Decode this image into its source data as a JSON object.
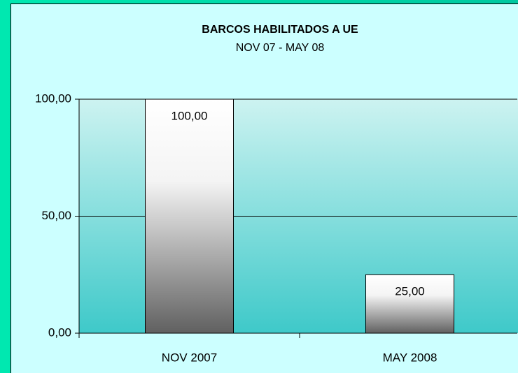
{
  "chart_data": {
    "type": "bar",
    "title": "BARCOS HABILITADOS A UE",
    "subtitle": "NOV 07 - MAY 08",
    "categories": [
      "NOV 2007",
      "MAY 2008"
    ],
    "values": [
      100,
      25
    ],
    "value_labels": [
      "100,00",
      "25,00"
    ],
    "ylim": [
      0,
      100
    ],
    "yticks": [
      {
        "value": 0,
        "label": "0,00"
      },
      {
        "value": 50,
        "label": "50,00"
      },
      {
        "value": 100,
        "label": "100,00"
      }
    ],
    "grid": true
  }
}
